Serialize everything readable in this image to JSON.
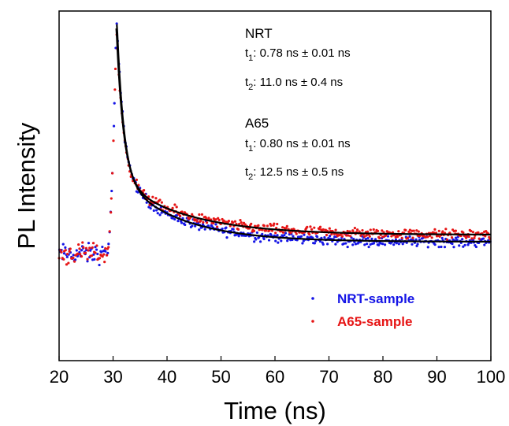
{
  "chart_data": {
    "type": "scatter",
    "xlabel": "Time (ns)",
    "ylabel": "PL Intensity",
    "xlim": [
      20,
      100
    ],
    "ylim": [
      0,
      1
    ],
    "x_ticks": [
      "20",
      "30",
      "40",
      "50",
      "60",
      "70",
      "80",
      "90",
      "100"
    ],
    "y_ticks": [],
    "grid": false,
    "legend_position": "bottom-right",
    "series": [
      {
        "name": "NRT-sample",
        "color": "#1515e6",
        "baseline": 0.305,
        "rise_x": 28.8,
        "peak_x": 30.6,
        "peak_y": 0.96,
        "tau1_ns": 0.78,
        "tau2_ns": 11.0,
        "amp_fast": 0.48,
        "amp_slow": 0.19,
        "tail_y": 0.34
      },
      {
        "name": "A65-sample",
        "color": "#e61515",
        "baseline": 0.305,
        "rise_x": 28.8,
        "peak_x": 30.6,
        "peak_y": 0.95,
        "tau1_ns": 0.8,
        "tau2_ns": 12.5,
        "amp_fast": 0.44,
        "amp_slow": 0.16,
        "tail_y": 0.36
      }
    ],
    "fits": [
      {
        "for": "NRT-sample",
        "color": "#000000"
      },
      {
        "for": "A65-sample",
        "color": "#000000"
      }
    ],
    "annotations": [
      {
        "sample": "NRT",
        "t1_sym": "t",
        "t1_sub": "1",
        "t1_val": ":  0.78 ns ± 0.01 ns",
        "t2_sym": "t",
        "t2_sub": "2",
        "t2_val": ":  11.0 ns ± 0.4 ns"
      },
      {
        "sample": "A65",
        "t1_sym": "t",
        "t1_sub": "1",
        "t1_val": ":  0.80 ns ± 0.01 ns",
        "t2_sym": "t",
        "t2_sub": "2",
        "t2_val": ":  12.5 ns ± 0.5 ns"
      }
    ]
  }
}
